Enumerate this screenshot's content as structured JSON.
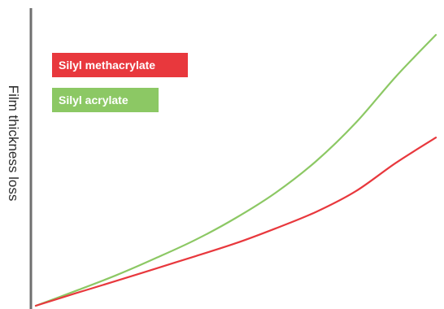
{
  "chart_data": {
    "type": "line",
    "title": "",
    "xlabel": "",
    "ylabel": "Film thickness loss",
    "xlim": [
      0,
      10
    ],
    "ylim": [
      0,
      10
    ],
    "grid": false,
    "legend_placement": "top-left",
    "series": [
      {
        "name": "Silyl methacrylate",
        "color": "#e8383d",
        "x": [
          0,
          1,
          2,
          3,
          4,
          5,
          6,
          7,
          8,
          9,
          10
        ],
        "values": [
          0.0,
          0.42,
          0.83,
          1.25,
          1.67,
          2.1,
          2.6,
          3.15,
          3.85,
          4.8,
          5.65
        ]
      },
      {
        "name": "Silyl acrylate",
        "color": "#8cc864",
        "x": [
          0,
          1,
          2,
          3,
          4,
          5,
          6,
          7,
          8,
          9,
          10
        ],
        "values": [
          0.0,
          0.5,
          1.02,
          1.6,
          2.22,
          2.95,
          3.8,
          4.85,
          6.15,
          7.7,
          9.1
        ]
      }
    ]
  }
}
